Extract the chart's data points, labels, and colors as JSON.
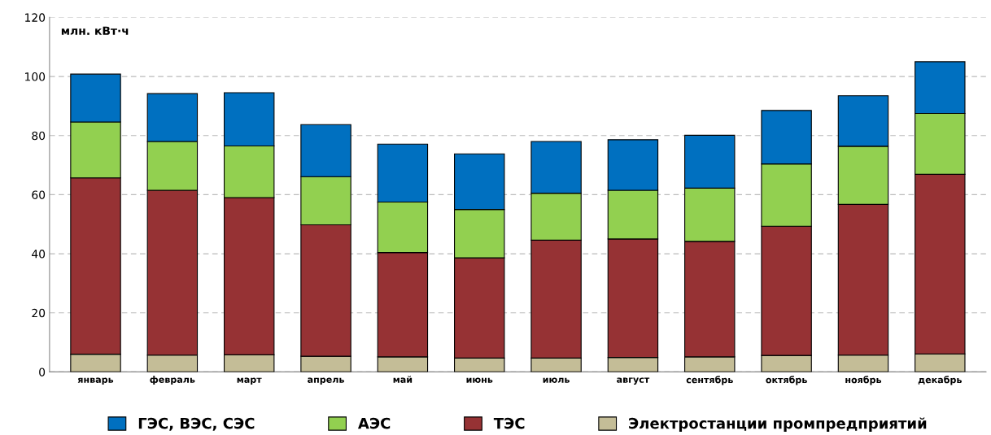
{
  "chart_data": {
    "type": "bar",
    "stacked": true,
    "ylabel": "млн. кВт·ч",
    "categories": [
      "январь",
      "февраль",
      "март",
      "апрель",
      "май",
      "июнь",
      "июль",
      "август",
      "сентябрь",
      "октябрь",
      "ноябрь",
      "декабрь"
    ],
    "series": [
      {
        "name": "Электростанции промпредприятий",
        "color": "#c4bd97",
        "values": [
          6.0,
          5.7,
          5.8,
          5.3,
          5.1,
          4.7,
          4.7,
          4.9,
          5.1,
          5.6,
          5.7,
          6.1
        ]
      },
      {
        "name": "ТЭС",
        "color": "#963234",
        "values": [
          59.7,
          55.8,
          53.2,
          44.5,
          35.3,
          33.9,
          39.9,
          40.1,
          39.1,
          43.7,
          51.0,
          60.8
        ]
      },
      {
        "name": "АЭС",
        "color": "#92d050",
        "values": [
          18.9,
          16.5,
          17.5,
          16.3,
          17.1,
          16.4,
          15.9,
          16.5,
          18.0,
          21.1,
          19.7,
          20.6
        ]
      },
      {
        "name": "ГЭС, ВЭС, СЭС",
        "color": "#0070c0",
        "values": [
          16.2,
          16.2,
          18.0,
          17.6,
          19.6,
          18.8,
          17.5,
          17.1,
          17.9,
          18.1,
          17.1,
          17.5
        ]
      }
    ],
    "ylim": [
      0,
      120
    ],
    "yticks": [
      0,
      20,
      40,
      60,
      80,
      100,
      120
    ],
    "grid": "y",
    "legend": "bottom"
  }
}
